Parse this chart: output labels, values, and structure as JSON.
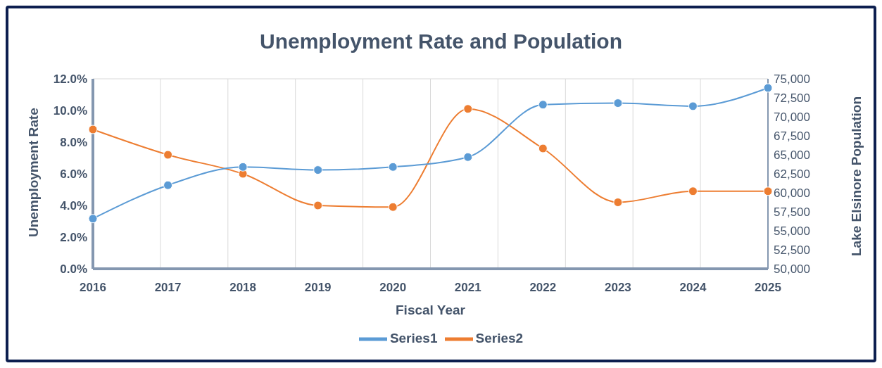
{
  "chart_data": {
    "type": "line",
    "title": "Unemployment Rate and Population",
    "xlabel": "Fiscal Year",
    "ylabel": "Unemployment Rate",
    "y2label": "Lake Elsinore Population",
    "categories": [
      "2016",
      "2017",
      "2018",
      "2019",
      "2020",
      "2021",
      "2022",
      "2023",
      "2024",
      "2025"
    ],
    "series": [
      {
        "name": "Series2",
        "color": "#ed7d31",
        "values": [
          8.8,
          7.2,
          6.0,
          4.0,
          3.9,
          10.1,
          7.6,
          4.2,
          4.9,
          4.9
        ]
      },
      {
        "name": "Series1",
        "color": "#5b9bd5",
        "axis": "y2",
        "values": [
          56600,
          61000,
          63400,
          63000,
          63400,
          64700,
          71600,
          71800,
          71400,
          73800
        ]
      }
    ],
    "ylim": [
      0,
      12
    ],
    "yticks": [
      {
        "value": 0,
        "label": "0.0%"
      },
      {
        "value": 2,
        "label": "2.0%"
      },
      {
        "value": 4,
        "label": "4.0%"
      },
      {
        "value": 6,
        "label": "6.0%"
      },
      {
        "value": 8,
        "label": "8.0%"
      },
      {
        "value": 10,
        "label": "10.0%"
      },
      {
        "value": 12,
        "label": "12.0%"
      }
    ],
    "y2lim": [
      50000,
      75000
    ],
    "y2ticks": [
      {
        "value": 50000,
        "label": "50,000"
      },
      {
        "value": 52500,
        "label": "52,500"
      },
      {
        "value": 55000,
        "label": "55,000"
      },
      {
        "value": 57500,
        "label": "57,500"
      },
      {
        "value": 60000,
        "label": "60,000"
      },
      {
        "value": 62500,
        "label": "62,500"
      },
      {
        "value": 65000,
        "label": "65,000"
      },
      {
        "value": 67500,
        "label": "67,500"
      },
      {
        "value": 70000,
        "label": "70,000"
      },
      {
        "value": 72500,
        "label": "72,500"
      },
      {
        "value": 75000,
        "label": "75,000"
      }
    ],
    "grid": true,
    "legend": "bottom",
    "marker": "circle",
    "line_style": "solid"
  }
}
